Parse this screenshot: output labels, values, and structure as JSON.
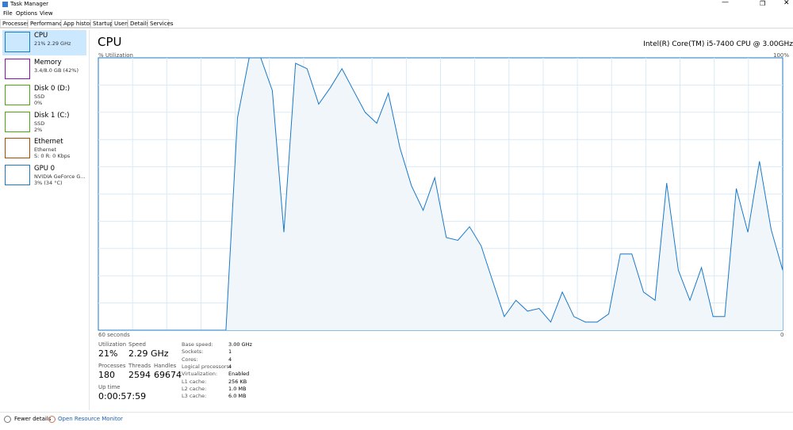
{
  "window": {
    "title": "Task Manager"
  },
  "menu": [
    "File",
    "Options",
    "View"
  ],
  "tabs": [
    "Processes",
    "Performance",
    "App history",
    "Startup",
    "Users",
    "Details",
    "Services"
  ],
  "sidebar": [
    {
      "name": "CPU",
      "lines": [
        "21% 2.29 GHz"
      ],
      "color": "#1979ca"
    },
    {
      "name": "Memory",
      "lines": [
        "3.4/8.0 GB (42%)"
      ],
      "color": "#8b12ae"
    },
    {
      "name": "Disk 0 (D:)",
      "lines": [
        "SSD",
        "0%"
      ],
      "color": "#4da60c"
    },
    {
      "name": "Disk 1 (C:)",
      "lines": [
        "SSD",
        "2%"
      ],
      "color": "#4da60c"
    },
    {
      "name": "Ethernet",
      "lines": [
        "Ethernet",
        "S: 0 R: 0 Kbps"
      ],
      "color": "#a74f01"
    },
    {
      "name": "GPU 0",
      "lines": [
        "NVIDIA GeForce G...",
        "3% (34 °C)"
      ],
      "color": "#1979ca"
    }
  ],
  "panel": {
    "title": "CPU",
    "cpu_name": "Intel(R) Core(TM) i5-7400 CPU @ 3.00GHz"
  },
  "graph": {
    "y_label": "% Utilization",
    "y_max_label": "100%",
    "x_left_label": "60 seconds",
    "x_right_label": "0",
    "ylim": [
      0,
      100
    ],
    "values": [
      0,
      0,
      0,
      0,
      0,
      0,
      0,
      0,
      0,
      0,
      0,
      0,
      78,
      100,
      100,
      88,
      36,
      98,
      96,
      83,
      89,
      96,
      88,
      80,
      76,
      87,
      67,
      53,
      44,
      56,
      34,
      33,
      38,
      31,
      18,
      5,
      11,
      7,
      8,
      3,
      14,
      5,
      3,
      3,
      6,
      28,
      28,
      14,
      11,
      54,
      22,
      11,
      23,
      5,
      5,
      52,
      36,
      62,
      37,
      22
    ]
  },
  "stats": [
    {
      "label": "Utilization",
      "value": "21%"
    },
    {
      "label": "Speed",
      "value": "2.29 GHz"
    },
    {
      "label": "Processes",
      "value": "180"
    },
    {
      "label": "Threads",
      "value": "2594"
    },
    {
      "label": "Handles",
      "value": "69674"
    },
    {
      "label": "Up time",
      "value": "0:00:57:59"
    }
  ],
  "details": [
    [
      "Base speed:",
      "3.00 GHz"
    ],
    [
      "Sockets:",
      "1"
    ],
    [
      "Cores:",
      "4"
    ],
    [
      "Logical processors:",
      "4"
    ],
    [
      "Virtualization:",
      "Enabled"
    ],
    [
      "L1 cache:",
      "256 KB"
    ],
    [
      "L2 cache:",
      "1.0 MB"
    ],
    [
      "L3 cache:",
      "6.0 MB"
    ]
  ],
  "footer": {
    "fewer_details": "Fewer details",
    "resource_monitor": "Open Resource Monitor"
  }
}
